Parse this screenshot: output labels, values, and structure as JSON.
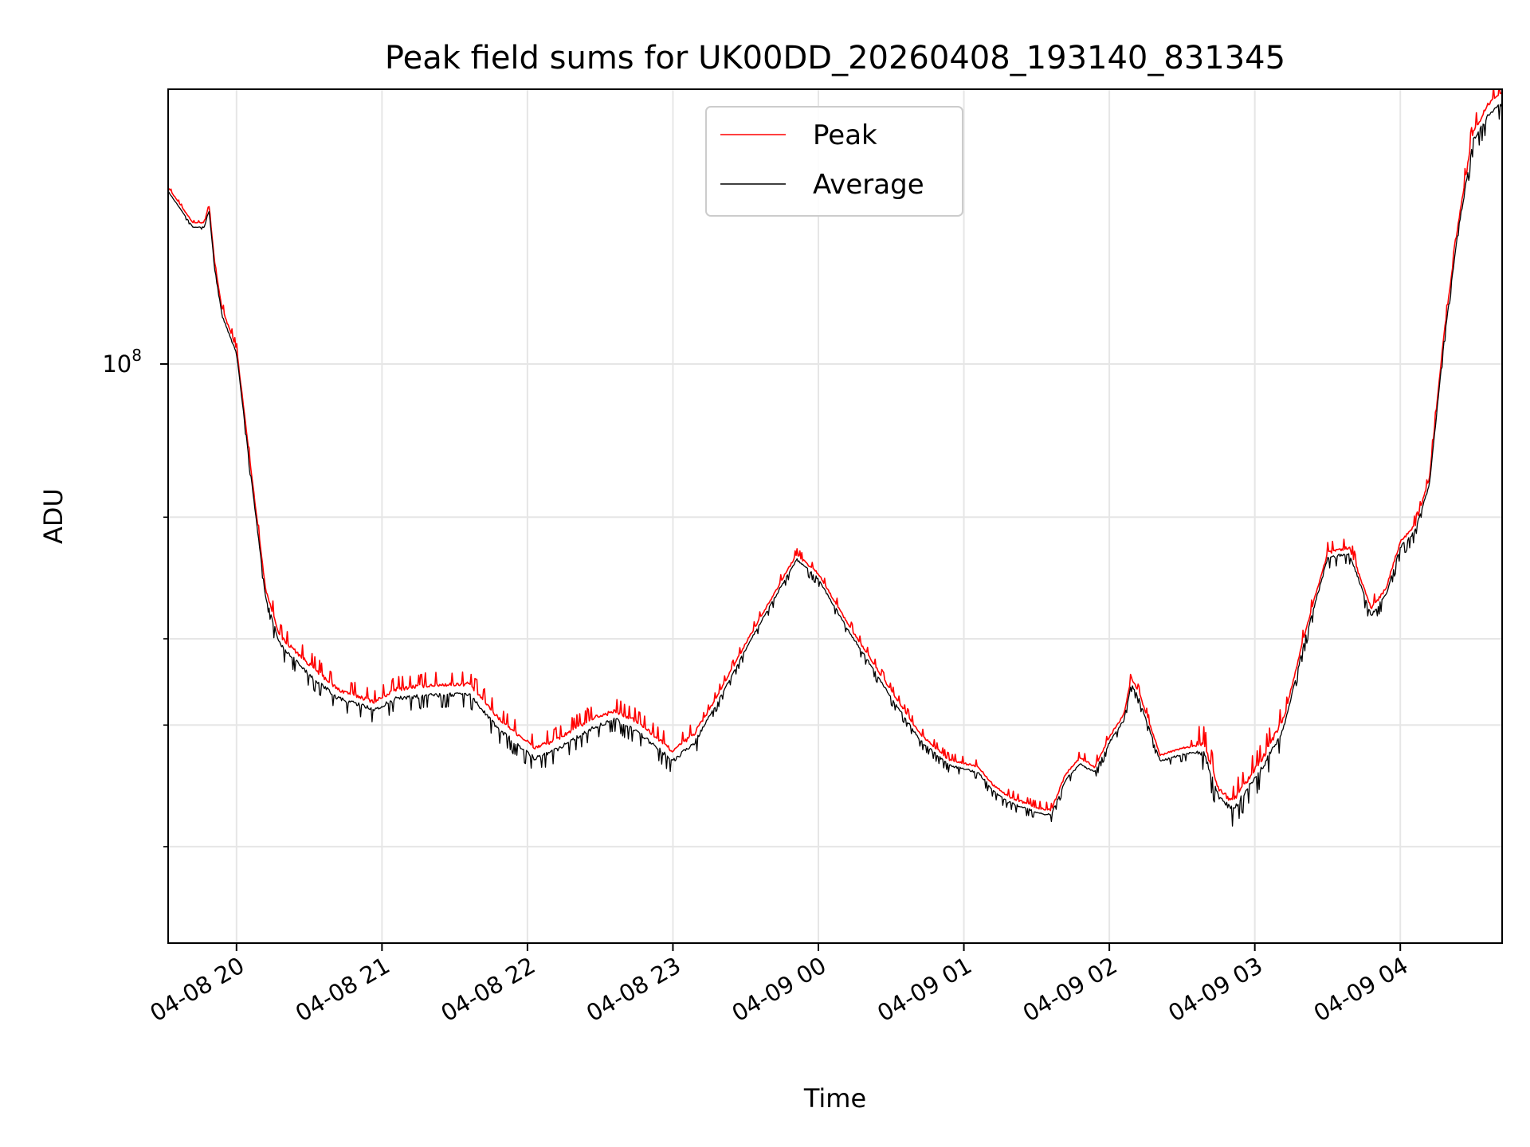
{
  "chart_data": {
    "type": "line",
    "title": "Peak field sums for UK00DD_20260408_193140_831345",
    "xlabel": "Time",
    "ylabel": "ADU",
    "yscale": "log",
    "grid": true,
    "legend_position": "top-center",
    "x_range_hours": [
      19.53,
      28.7
    ],
    "y_range": [
      14500000,
      250000000
    ],
    "x_ticks": [
      {
        "label": "04-08 20",
        "hour": 20
      },
      {
        "label": "04-08 21",
        "hour": 21
      },
      {
        "label": "04-08 22",
        "hour": 22
      },
      {
        "label": "04-08 23",
        "hour": 23
      },
      {
        "label": "04-09 00",
        "hour": 24
      },
      {
        "label": "04-09 01",
        "hour": 25
      },
      {
        "label": "04-09 02",
        "hour": 26
      },
      {
        "label": "04-09 03",
        "hour": 27
      },
      {
        "label": "04-09 04",
        "hour": 28
      }
    ],
    "y_major_tick": {
      "base": "10",
      "exponent": "8",
      "value": 100000000
    },
    "y_minor_ticks": [
      20000000,
      30000000,
      40000000,
      60000000
    ],
    "series": [
      {
        "name": "Peak",
        "color": "#ff0000",
        "points": [
          [
            19.53,
            180000000
          ],
          [
            19.7,
            160000000
          ],
          [
            19.78,
            160000000
          ],
          [
            19.81,
            170000000
          ],
          [
            19.85,
            140000000
          ],
          [
            19.9,
            120000000
          ],
          [
            20.0,
            105000000
          ],
          [
            20.1,
            70000000
          ],
          [
            20.2,
            47000000
          ],
          [
            20.3,
            40000000
          ],
          [
            20.5,
            36500000
          ],
          [
            20.7,
            33500000
          ],
          [
            20.95,
            32200000
          ],
          [
            21.1,
            33600000
          ],
          [
            21.3,
            34000000
          ],
          [
            21.6,
            34200000
          ],
          [
            21.8,
            30500000
          ],
          [
            22.05,
            27600000
          ],
          [
            22.2,
            28400000
          ],
          [
            22.45,
            30500000
          ],
          [
            22.6,
            31200000
          ],
          [
            22.75,
            30200000
          ],
          [
            23.0,
            27300000
          ],
          [
            23.15,
            29000000
          ],
          [
            23.3,
            32800000
          ],
          [
            23.55,
            41000000
          ],
          [
            23.85,
            52800000
          ],
          [
            24.0,
            49500000
          ],
          [
            24.2,
            42000000
          ],
          [
            24.5,
            33500000
          ],
          [
            24.7,
            29000000
          ],
          [
            24.9,
            26600000
          ],
          [
            25.1,
            26000000
          ],
          [
            25.2,
            24500000
          ],
          [
            25.3,
            23600000
          ],
          [
            25.5,
            22700000
          ],
          [
            25.6,
            22500000
          ],
          [
            25.7,
            25400000
          ],
          [
            25.8,
            26800000
          ],
          [
            25.9,
            26000000
          ],
          [
            26.0,
            28700000
          ],
          [
            26.1,
            31000000
          ],
          [
            26.15,
            35000000
          ],
          [
            26.2,
            33500000
          ],
          [
            26.35,
            27000000
          ],
          [
            26.5,
            27700000
          ],
          [
            26.65,
            28000000
          ],
          [
            26.75,
            24000000
          ],
          [
            26.85,
            23000000
          ],
          [
            27.05,
            26500000
          ],
          [
            27.2,
            30500000
          ],
          [
            27.35,
            41000000
          ],
          [
            27.5,
            53000000
          ],
          [
            27.65,
            54000000
          ],
          [
            27.8,
            44000000
          ],
          [
            27.9,
            47000000
          ],
          [
            28.0,
            55000000
          ],
          [
            28.1,
            58000000
          ],
          [
            28.2,
            68000000
          ],
          [
            28.3,
            110000000
          ],
          [
            28.4,
            160000000
          ],
          [
            28.5,
            215000000
          ],
          [
            28.6,
            235000000
          ],
          [
            28.7,
            245000000
          ]
        ]
      },
      {
        "name": "Average",
        "color": "#000000",
        "points": [
          [
            19.53,
            178000000
          ],
          [
            19.7,
            158000000
          ],
          [
            19.78,
            158000000
          ],
          [
            19.81,
            168000000
          ],
          [
            19.85,
            138000000
          ],
          [
            19.9,
            118000000
          ],
          [
            20.0,
            104000000
          ],
          [
            20.1,
            69000000
          ],
          [
            20.2,
            46000000
          ],
          [
            20.3,
            39500000
          ],
          [
            20.5,
            35700000
          ],
          [
            20.7,
            33000000
          ],
          [
            20.95,
            31800000
          ],
          [
            21.1,
            33000000
          ],
          [
            21.3,
            33300000
          ],
          [
            21.6,
            33500000
          ],
          [
            21.8,
            29800000
          ],
          [
            22.05,
            27000000
          ],
          [
            22.2,
            27800000
          ],
          [
            22.45,
            29900000
          ],
          [
            22.6,
            30800000
          ],
          [
            22.75,
            29600000
          ],
          [
            23.0,
            26800000
          ],
          [
            23.15,
            28500000
          ],
          [
            23.3,
            32300000
          ],
          [
            23.55,
            40500000
          ],
          [
            23.85,
            52300000
          ],
          [
            24.0,
            49000000
          ],
          [
            24.2,
            41500000
          ],
          [
            24.5,
            33000000
          ],
          [
            24.7,
            28600000
          ],
          [
            24.9,
            26300000
          ],
          [
            25.1,
            25700000
          ],
          [
            25.2,
            24200000
          ],
          [
            25.3,
            23300000
          ],
          [
            25.5,
            22500000
          ],
          [
            25.6,
            22300000
          ],
          [
            25.7,
            25100000
          ],
          [
            25.8,
            26400000
          ],
          [
            25.9,
            25700000
          ],
          [
            26.0,
            28400000
          ],
          [
            26.1,
            30600000
          ],
          [
            26.15,
            34500000
          ],
          [
            26.2,
            33000000
          ],
          [
            26.35,
            26700000
          ],
          [
            26.5,
            27300000
          ],
          [
            26.65,
            27600000
          ],
          [
            26.75,
            23800000
          ],
          [
            26.85,
            22800000
          ],
          [
            27.05,
            26200000
          ],
          [
            27.2,
            30000000
          ],
          [
            27.35,
            40500000
          ],
          [
            27.5,
            52500000
          ],
          [
            27.65,
            53500000
          ],
          [
            27.8,
            43500000
          ],
          [
            27.9,
            46500000
          ],
          [
            28.0,
            54500000
          ],
          [
            28.1,
            57500000
          ],
          [
            28.2,
            67000000
          ],
          [
            28.3,
            108000000
          ],
          [
            28.4,
            158000000
          ],
          [
            28.5,
            212000000
          ],
          [
            28.6,
            230000000
          ],
          [
            28.7,
            240000000
          ]
        ]
      }
    ]
  }
}
